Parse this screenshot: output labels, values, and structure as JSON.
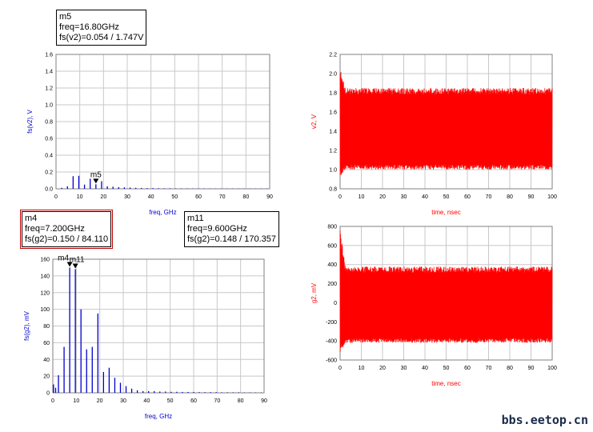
{
  "colors": {
    "spectrum": "#0000cc",
    "time": "#ff0000",
    "grid": "#c8c8c8",
    "frame": "#808080"
  },
  "markers": {
    "m5": {
      "name": "m5",
      "line1": "freq=16.80GHz",
      "line2": "fs(v2)=0.054 / 1.747V"
    },
    "m4": {
      "name": "m4",
      "line1": "freq=7.200GHz",
      "line2": "fs(g2)=0.150 / 84.110"
    },
    "m11": {
      "name": "m11",
      "line1": "freq=9.600GHz",
      "line2": "fs(g2)=0.148 / 170.357"
    }
  },
  "watermark": "bbs.eetop.cn",
  "chart_data": [
    {
      "id": "fs_v2",
      "type": "bar",
      "xlabel": "freq, GHz",
      "ylabel": "fs(v2), V",
      "xlim": [
        0,
        90
      ],
      "ylim": [
        0,
        1.6
      ],
      "xticks": [
        0,
        10,
        20,
        30,
        40,
        50,
        60,
        70,
        80,
        90
      ],
      "yticks": [
        0.0,
        0.2,
        0.4,
        0.6,
        0.8,
        1.0,
        1.2,
        1.4,
        1.6
      ],
      "ytick_decimals": 1,
      "grid": true,
      "color": "spectrum",
      "x": [
        2.4,
        4.8,
        7.2,
        9.6,
        12.0,
        14.4,
        16.8,
        19.2,
        21.6,
        24.0,
        26.4,
        28.8,
        31.2,
        33.6,
        36.0,
        38.4,
        40.8,
        43.2,
        45.6,
        48.0,
        50.4,
        52.8,
        55.2,
        57.6,
        60.0,
        62.4,
        64.8,
        67.2,
        69.6,
        72.0,
        74.4,
        76.8,
        79.2,
        81.6,
        84.0,
        86.4,
        88.8
      ],
      "values": [
        0.012,
        0.03,
        0.15,
        0.155,
        0.05,
        0.12,
        0.054,
        0.09,
        0.03,
        0.025,
        0.02,
        0.018,
        0.015,
        0.012,
        0.01,
        0.008,
        0.008,
        0.007,
        0.006,
        0.006,
        0.005,
        0.005,
        0.005,
        0.004,
        0.004,
        0.004,
        0.004,
        0.003,
        0.003,
        0.003,
        0.003,
        0.003,
        0.003,
        0.003,
        0.003,
        0.003,
        0.003
      ],
      "markers": [
        {
          "label": "m5",
          "x": 16.8,
          "y": 0.054
        }
      ]
    },
    {
      "id": "fs_g2",
      "type": "bar",
      "xlabel": "freq, GHz",
      "ylabel": "fs(g2), mV",
      "xlim": [
        0,
        90
      ],
      "ylim": [
        0,
        160
      ],
      "xticks": [
        0,
        10,
        20,
        30,
        40,
        50,
        60,
        70,
        80,
        90
      ],
      "yticks": [
        0,
        20,
        40,
        60,
        80,
        100,
        120,
        140,
        160
      ],
      "ytick_decimals": 0,
      "grid": true,
      "color": "spectrum",
      "x": [
        0.3,
        1.2,
        2.4,
        4.8,
        7.2,
        9.6,
        12.0,
        14.4,
        16.8,
        19.2,
        21.6,
        24.0,
        26.4,
        28.8,
        31.2,
        33.6,
        36.0,
        38.4,
        40.8,
        43.2,
        45.6,
        48.0,
        50.4,
        52.8,
        55.2,
        57.6,
        60.0,
        62.4,
        64.8,
        67.2,
        69.6,
        72.0,
        74.4,
        76.8,
        79.2,
        81.6,
        84.0,
        86.4,
        88.8
      ],
      "values": [
        10,
        6,
        21,
        55,
        150,
        148,
        100,
        52,
        55,
        95,
        25,
        30,
        18,
        12,
        8,
        5,
        3,
        2,
        2,
        2,
        1.5,
        1.5,
        1.2,
        1.2,
        1,
        1,
        1,
        0.8,
        0.8,
        0.8,
        0.8,
        0.6,
        0.6,
        0.6,
        0.6,
        0.5,
        0.5,
        0.5,
        0.5
      ],
      "markers": [
        {
          "label": "m4",
          "x": 7.2,
          "y": 150
        },
        {
          "label": "m11",
          "x": 9.6,
          "y": 148
        }
      ]
    },
    {
      "id": "v2_time",
      "type": "line",
      "xlabel": "time, nsec",
      "ylabel": "v2, V",
      "xlim": [
        0,
        100
      ],
      "ylim": [
        0.8,
        2.2
      ],
      "xticks": [
        0,
        10,
        20,
        30,
        40,
        50,
        60,
        70,
        80,
        90,
        100
      ],
      "yticks": [
        0.8,
        1.0,
        1.2,
        1.4,
        1.6,
        1.8,
        2.0,
        2.2
      ],
      "ytick_decimals": 1,
      "grid": true,
      "color": "time",
      "envelope": {
        "low": 1.0,
        "high": 1.85,
        "initial_peak": 2.05,
        "initial_dip": 0.92,
        "settle_time": 2.5
      }
    },
    {
      "id": "g2_time",
      "type": "line",
      "xlabel": "time, nsec",
      "ylabel": "g2, mV",
      "xlim": [
        0,
        100
      ],
      "ylim": [
        -600,
        800
      ],
      "xticks": [
        0,
        10,
        20,
        30,
        40,
        50,
        60,
        70,
        80,
        90,
        100
      ],
      "yticks": [
        -600,
        -400,
        -200,
        0,
        200,
        400,
        600,
        800
      ],
      "ytick_decimals": 0,
      "grid": true,
      "color": "time",
      "envelope": {
        "low": -420,
        "high": 380,
        "initial_peak": 760,
        "initial_dip": -530,
        "settle_time": 2.5
      }
    }
  ]
}
